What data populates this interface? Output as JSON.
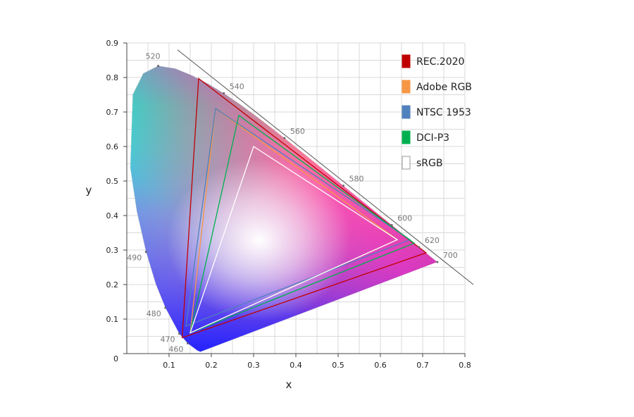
{
  "chart_data": {
    "type": "scatter",
    "xlabel": "x",
    "ylabel": "y",
    "xlim": [
      0,
      0.8
    ],
    "ylim": [
      0,
      0.9
    ],
    "x_ticks": [
      "0.1",
      "0.2",
      "0.3",
      "0.4",
      "0.5",
      "0.6",
      "0.7",
      "0.8"
    ],
    "y_ticks": [
      "0",
      "0.1",
      "0.2",
      "0.3",
      "0.4",
      "0.5",
      "0.6",
      "0.7",
      "0.8",
      "0.9"
    ],
    "grid": true,
    "legend_position": "top-right",
    "spectral_locus": [
      [
        0.1741,
        0.005
      ],
      [
        0.1666,
        0.0089
      ],
      [
        0.144,
        0.0297
      ],
      [
        0.1241,
        0.0578
      ],
      [
        0.0913,
        0.1327
      ],
      [
        0.0687,
        0.2007
      ],
      [
        0.0454,
        0.295
      ],
      [
        0.0235,
        0.4127
      ],
      [
        0.0082,
        0.5384
      ],
      [
        0.0139,
        0.7502
      ],
      [
        0.0389,
        0.812
      ],
      [
        0.0743,
        0.8338
      ],
      [
        0.1142,
        0.8262
      ],
      [
        0.1547,
        0.8059
      ],
      [
        0.1929,
        0.7816
      ],
      [
        0.2296,
        0.7543
      ],
      [
        0.2658,
        0.7243
      ],
      [
        0.3016,
        0.6923
      ],
      [
        0.3373,
        0.6589
      ],
      [
        0.3731,
        0.6245
      ],
      [
        0.4087,
        0.5896
      ],
      [
        0.4441,
        0.5547
      ],
      [
        0.4788,
        0.5202
      ],
      [
        0.5125,
        0.4866
      ],
      [
        0.5448,
        0.4544
      ],
      [
        0.5752,
        0.4242
      ],
      [
        0.6029,
        0.3965
      ],
      [
        0.627,
        0.3725
      ],
      [
        0.6482,
        0.3514
      ],
      [
        0.6658,
        0.334
      ],
      [
        0.6801,
        0.3197
      ],
      [
        0.6915,
        0.3083
      ],
      [
        0.7006,
        0.2993
      ],
      [
        0.7079,
        0.292
      ],
      [
        0.7347,
        0.2653
      ]
    ],
    "wavelength_labels": [
      {
        "label": "460",
        "x": 0.144,
        "y": 0.0297
      },
      {
        "label": "470",
        "x": 0.1241,
        "y": 0.0578
      },
      {
        "label": "480",
        "x": 0.0913,
        "y": 0.1327
      },
      {
        "label": "490",
        "x": 0.0454,
        "y": 0.295
      },
      {
        "label": "520",
        "x": 0.0743,
        "y": 0.8338
      },
      {
        "label": "540",
        "x": 0.2296,
        "y": 0.7543
      },
      {
        "label": "560",
        "x": 0.3731,
        "y": 0.6245
      },
      {
        "label": "580",
        "x": 0.5125,
        "y": 0.4866
      },
      {
        "label": "600",
        "x": 0.627,
        "y": 0.3725
      },
      {
        "label": "620",
        "x": 0.6915,
        "y": 0.3083
      },
      {
        "label": "700",
        "x": 0.7347,
        "y": 0.2653
      }
    ],
    "series": [
      {
        "name": "REC.2020",
        "color": "#c00000",
        "points": [
          [
            0.708,
            0.292
          ],
          [
            0.17,
            0.797
          ],
          [
            0.131,
            0.046
          ]
        ]
      },
      {
        "name": "Adobe RGB",
        "color": "#f79646",
        "points": [
          [
            0.64,
            0.33
          ],
          [
            0.21,
            0.71
          ],
          [
            0.15,
            0.06
          ]
        ]
      },
      {
        "name": "NTSC 1953",
        "color": "#4f81bd",
        "points": [
          [
            0.67,
            0.33
          ],
          [
            0.21,
            0.71
          ],
          [
            0.14,
            0.08
          ]
        ]
      },
      {
        "name": "DCI-P3",
        "color": "#00b050",
        "points": [
          [
            0.68,
            0.32
          ],
          [
            0.265,
            0.69
          ],
          [
            0.15,
            0.06
          ]
        ]
      },
      {
        "name": "sRGB",
        "color": "#ffffff",
        "points": [
          [
            0.64,
            0.33
          ],
          [
            0.3,
            0.6
          ],
          [
            0.15,
            0.06
          ]
        ]
      }
    ]
  }
}
